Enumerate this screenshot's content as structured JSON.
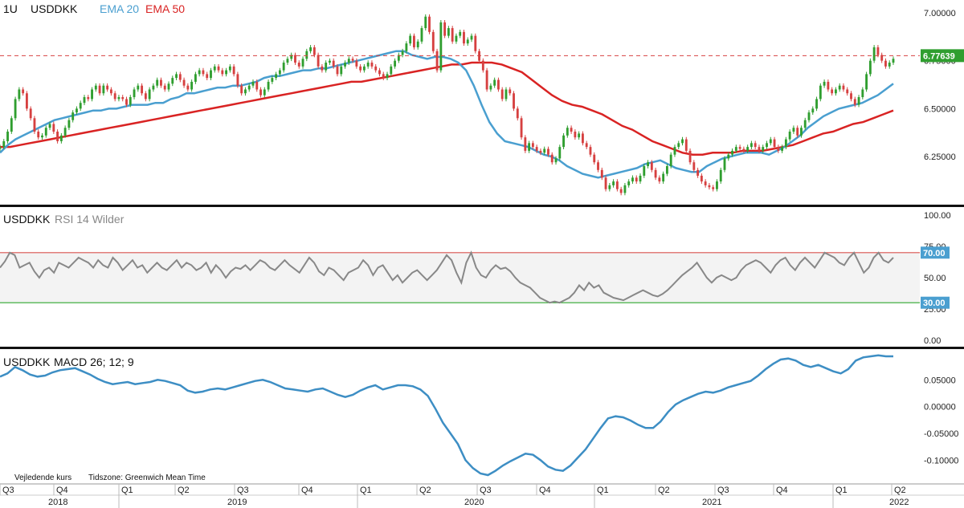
{
  "chart_data": [
    {
      "type": "candlestick",
      "header": {
        "interval": "1U",
        "symbol": "USDDKK",
        "ema20_label": "EMA 20",
        "ema50_label": "EMA 50"
      },
      "ylim": [
        6.02,
        7.05
      ],
      "yticks": [
        "7.00000",
        "6.75000",
        "6.50000",
        "6.25000"
      ],
      "ytick_values": [
        7.0,
        6.75,
        6.5,
        6.25
      ],
      "last_price": 6.77639,
      "last_price_label": "6.77639",
      "colors": {
        "up": "#2f9e2f",
        "down": "#d64040",
        "ema20": "#4a9fd0",
        "ema50": "#d92323",
        "last": "#d64040",
        "last_tag": "#2f9e2f"
      },
      "close": [
        6.3,
        6.33,
        6.38,
        6.45,
        6.55,
        6.6,
        6.58,
        6.5,
        6.45,
        6.38,
        6.35,
        6.36,
        6.4,
        6.42,
        6.38,
        6.33,
        6.36,
        6.4,
        6.44,
        6.48,
        6.5,
        6.53,
        6.56,
        6.55,
        6.6,
        6.62,
        6.58,
        6.62,
        6.6,
        6.58,
        6.55,
        6.56,
        6.55,
        6.52,
        6.56,
        6.6,
        6.62,
        6.58,
        6.55,
        6.6,
        6.62,
        6.65,
        6.62,
        6.6,
        6.63,
        6.66,
        6.68,
        6.65,
        6.62,
        6.6,
        6.64,
        6.68,
        6.7,
        6.68,
        6.66,
        6.7,
        6.72,
        6.7,
        6.68,
        6.7,
        6.72,
        6.68,
        6.62,
        6.58,
        6.6,
        6.62,
        6.64,
        6.6,
        6.57,
        6.6,
        6.64,
        6.66,
        6.68,
        6.7,
        6.74,
        6.76,
        6.78,
        6.74,
        6.72,
        6.76,
        6.8,
        6.82,
        6.78,
        6.72,
        6.7,
        6.74,
        6.75,
        6.72,
        6.68,
        6.72,
        6.74,
        6.76,
        6.75,
        6.72,
        6.7,
        6.72,
        6.74,
        6.72,
        6.7,
        6.68,
        6.66,
        6.68,
        6.72,
        6.75,
        6.78,
        6.8,
        6.84,
        6.88,
        6.82,
        6.85,
        6.92,
        6.98,
        6.9,
        6.8,
        6.7,
        6.95,
        6.88,
        6.92,
        6.85,
        6.88,
        6.9,
        6.84,
        6.86,
        6.88,
        6.8,
        6.75,
        6.7,
        6.6,
        6.62,
        6.65,
        6.6,
        6.55,
        6.6,
        6.58,
        6.5,
        6.45,
        6.35,
        6.28,
        6.32,
        6.3,
        6.28,
        6.27,
        6.29,
        6.26,
        6.22,
        6.24,
        6.3,
        6.36,
        6.4,
        6.38,
        6.35,
        6.37,
        6.32,
        6.3,
        6.26,
        6.22,
        6.18,
        6.14,
        6.08,
        6.1,
        6.12,
        6.08,
        6.06,
        6.1,
        6.12,
        6.14,
        6.12,
        6.15,
        6.2,
        6.22,
        6.18,
        6.14,
        6.12,
        6.16,
        6.2,
        6.26,
        6.3,
        6.32,
        6.34,
        6.28,
        6.22,
        6.18,
        6.15,
        6.12,
        6.1,
        6.09,
        6.08,
        6.12,
        6.18,
        6.24,
        6.26,
        6.28,
        6.3,
        6.29,
        6.28,
        6.3,
        6.32,
        6.3,
        6.28,
        6.3,
        6.32,
        6.34,
        6.3,
        6.28,
        6.3,
        6.34,
        6.38,
        6.4,
        6.36,
        6.4,
        6.44,
        6.48,
        6.5,
        6.55,
        6.62,
        6.64,
        6.6,
        6.58,
        6.6,
        6.62,
        6.6,
        6.58,
        6.55,
        6.52,
        6.56,
        6.6,
        6.68,
        6.75,
        6.82,
        6.78,
        6.75,
        6.72,
        6.74,
        6.76
      ],
      "ema20": [
        6.27,
        6.31,
        6.34,
        6.36,
        6.38,
        6.4,
        6.42,
        6.44,
        6.45,
        6.46,
        6.47,
        6.48,
        6.49,
        6.49,
        6.5,
        6.5,
        6.51,
        6.52,
        6.52,
        6.52,
        6.53,
        6.53,
        6.55,
        6.56,
        6.58,
        6.58,
        6.59,
        6.6,
        6.61,
        6.61,
        6.62,
        6.62,
        6.63,
        6.64,
        6.66,
        6.67,
        6.67,
        6.68,
        6.69,
        6.7,
        6.7,
        6.71,
        6.71,
        6.72,
        6.73,
        6.74,
        6.75,
        6.76,
        6.77,
        6.78,
        6.79,
        6.8,
        6.8,
        6.78,
        6.77,
        6.76,
        6.77,
        6.77,
        6.76,
        6.74,
        6.7,
        6.62,
        6.52,
        6.43,
        6.37,
        6.33,
        6.32,
        6.31,
        6.3,
        6.28,
        6.26,
        6.25,
        6.23,
        6.2,
        6.18,
        6.16,
        6.15,
        6.14,
        6.15,
        6.16,
        6.17,
        6.18,
        6.19,
        6.21,
        6.22,
        6.23,
        6.21,
        6.19,
        6.18,
        6.17,
        6.17,
        6.2,
        6.22,
        6.24,
        6.25,
        6.26,
        6.27,
        6.27,
        6.27,
        6.26,
        6.28,
        6.3,
        6.33,
        6.36,
        6.4,
        6.43,
        6.46,
        6.48,
        6.5,
        6.51,
        6.52,
        6.53,
        6.55,
        6.57,
        6.6,
        6.63
      ],
      "ema50": [
        6.3,
        6.3,
        6.31,
        6.32,
        6.33,
        6.34,
        6.35,
        6.36,
        6.37,
        6.38,
        6.39,
        6.4,
        6.41,
        6.42,
        6.43,
        6.44,
        6.45,
        6.46,
        6.47,
        6.48,
        6.49,
        6.5,
        6.51,
        6.52,
        6.53,
        6.54,
        6.55,
        6.56,
        6.57,
        6.58,
        6.59,
        6.6,
        6.61,
        6.62,
        6.63,
        6.64,
        6.64,
        6.65,
        6.66,
        6.67,
        6.68,
        6.69,
        6.7,
        6.71,
        6.72,
        6.73,
        6.73,
        6.74,
        6.74,
        6.74,
        6.73,
        6.71,
        6.69,
        6.65,
        6.61,
        6.57,
        6.54,
        6.52,
        6.51,
        6.49,
        6.47,
        6.44,
        6.41,
        6.39,
        6.36,
        6.33,
        6.31,
        6.29,
        6.27,
        6.26,
        6.26,
        6.27,
        6.27,
        6.27,
        6.28,
        6.28,
        6.28,
        6.29,
        6.3,
        6.31,
        6.33,
        6.35,
        6.37,
        6.38,
        6.4,
        6.42,
        6.43,
        6.45,
        6.47,
        6.49
      ]
    },
    {
      "type": "line",
      "title": "USDDKK",
      "subtitle": "RSI 14 Wilder",
      "ylim": [
        0,
        100
      ],
      "yticks": [
        "100.00",
        "75.00",
        "50.00",
        "25.00",
        "0.00"
      ],
      "ytick_values": [
        100,
        75,
        50,
        25,
        0
      ],
      "upper_band": 70,
      "lower_band": 30,
      "upper_band_label": "70.00",
      "lower_band_label": "30.00",
      "colors": {
        "line": "#888888",
        "upper": "#d9534f",
        "lower": "#2fa52f",
        "band_fill": "#f3f3f3",
        "tag": "#4a9fd0"
      },
      "values": [
        58,
        63,
        70,
        68,
        58,
        60,
        62,
        55,
        50,
        56,
        58,
        54,
        62,
        60,
        58,
        62,
        66,
        64,
        62,
        58,
        64,
        60,
        58,
        66,
        62,
        56,
        60,
        64,
        58,
        60,
        54,
        58,
        62,
        58,
        56,
        60,
        64,
        58,
        62,
        60,
        56,
        58,
        62,
        54,
        60,
        56,
        50,
        55,
        58,
        57,
        60,
        56,
        60,
        64,
        62,
        58,
        56,
        60,
        64,
        60,
        57,
        54,
        60,
        66,
        62,
        55,
        52,
        58,
        56,
        52,
        48,
        54,
        56,
        58,
        64,
        60,
        52,
        58,
        60,
        54,
        48,
        52,
        46,
        50,
        54,
        56,
        52,
        48,
        52,
        56,
        62,
        68,
        64,
        54,
        46,
        62,
        70,
        58,
        52,
        50,
        56,
        60,
        57,
        58,
        55,
        50,
        46,
        44,
        42,
        38,
        34,
        32,
        30,
        31,
        30,
        32,
        34,
        38,
        44,
        40,
        46,
        42,
        44,
        38,
        36,
        34,
        33,
        32,
        34,
        36,
        38,
        40,
        38,
        36,
        35,
        37,
        40,
        44,
        48,
        52,
        55,
        58,
        62,
        56,
        50,
        46,
        50,
        52,
        50,
        48,
        50,
        56,
        60,
        62,
        64,
        62,
        58,
        54,
        60,
        64,
        66,
        60,
        56,
        62,
        66,
        62,
        58,
        64,
        70,
        68,
        66,
        62,
        60,
        66,
        70,
        62,
        54,
        58,
        66,
        70,
        64,
        62,
        66
      ],
      "xticks": []
    },
    {
      "type": "line",
      "title": "USDDKK",
      "subtitle": "MACD 26; 12; 9",
      "ylim": [
        -0.14,
        0.1
      ],
      "yticks": [
        "0.05000",
        "0.00000",
        "-0.05000",
        "-0.10000"
      ],
      "ytick_values": [
        0.05,
        0.0,
        -0.05,
        -0.1
      ],
      "colors": {
        "line": "#3d8ec4"
      },
      "values": [
        0.056,
        0.062,
        0.074,
        0.068,
        0.06,
        0.056,
        0.058,
        0.064,
        0.068,
        0.07,
        0.072,
        0.066,
        0.06,
        0.052,
        0.046,
        0.042,
        0.044,
        0.046,
        0.042,
        0.044,
        0.046,
        0.05,
        0.048,
        0.044,
        0.04,
        0.03,
        0.026,
        0.028,
        0.032,
        0.034,
        0.032,
        0.036,
        0.04,
        0.044,
        0.048,
        0.05,
        0.046,
        0.04,
        0.034,
        0.032,
        0.03,
        0.028,
        0.032,
        0.034,
        0.028,
        0.022,
        0.018,
        0.022,
        0.03,
        0.036,
        0.04,
        0.032,
        0.036,
        0.04,
        0.04,
        0.038,
        0.032,
        0.02,
        -0.004,
        -0.03,
        -0.05,
        -0.07,
        -0.1,
        -0.115,
        -0.125,
        -0.128,
        -0.12,
        -0.11,
        -0.102,
        -0.095,
        -0.088,
        -0.09,
        -0.1,
        -0.112,
        -0.118,
        -0.12,
        -0.11,
        -0.095,
        -0.08,
        -0.06,
        -0.04,
        -0.022,
        -0.018,
        -0.02,
        -0.026,
        -0.034,
        -0.04,
        -0.04,
        -0.028,
        -0.01,
        0.004,
        0.012,
        0.018,
        0.024,
        0.028,
        0.026,
        0.03,
        0.036,
        0.04,
        0.044,
        0.048,
        0.058,
        0.07,
        0.08,
        0.088,
        0.09,
        0.086,
        0.078,
        0.074,
        0.078,
        0.072,
        0.066,
        0.062,
        0.07,
        0.086,
        0.092,
        0.094,
        0.096,
        0.094,
        0.094
      ]
    }
  ],
  "footer": {
    "source_note": "Vejledende kurs",
    "timezone_note": "Tidszone: Greenwich Mean Time",
    "quarters": [
      "Q3",
      "Q4",
      "Q1",
      "Q2",
      "Q3",
      "Q4",
      "Q1",
      "Q2",
      "Q3",
      "Q4",
      "Q1",
      "Q2",
      "Q3",
      "Q4",
      "Q1",
      "Q2"
    ],
    "years": [
      "2018",
      "2019",
      "2020",
      "2021",
      "2022"
    ]
  }
}
